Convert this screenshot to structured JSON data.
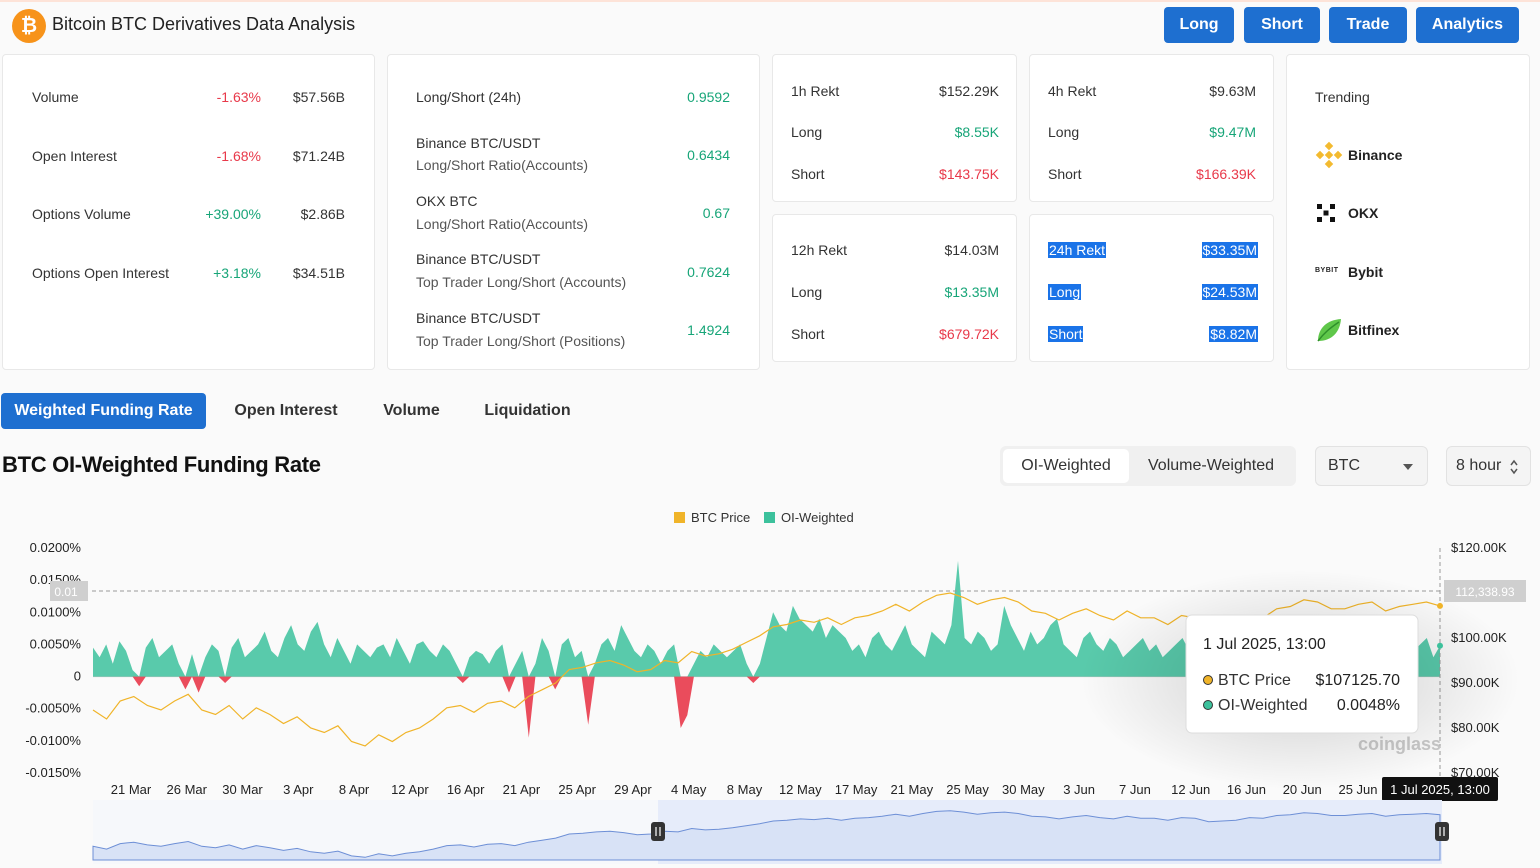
{
  "header": {
    "logo": "₿",
    "title": "Bitcoin BTC Derivatives Data Analysis",
    "nav": [
      "Long",
      "Short",
      "Trade",
      "Analytics"
    ]
  },
  "market": [
    {
      "label": "Volume",
      "change": "-1.63%",
      "value": "$57.56B"
    },
    {
      "label": "Open Interest",
      "change": "-1.68%",
      "value": "$71.24B"
    },
    {
      "label": "Options Volume",
      "change": "+39.00%",
      "value": "$2.86B"
    },
    {
      "label": "Options Open Interest",
      "change": "+3.18%",
      "value": "$34.51B"
    }
  ],
  "ratios": [
    {
      "line1": "Long/Short (24h)",
      "line2": "",
      "value": "0.9592"
    },
    {
      "line1": "Binance BTC/USDT",
      "line2": "Long/Short Ratio(Accounts)",
      "value": "0.6434"
    },
    {
      "line1": "OKX BTC",
      "line2": "Long/Short Ratio(Accounts)",
      "value": "0.67"
    },
    {
      "line1": "Binance BTC/USDT",
      "line2": "Top Trader Long/Short (Accounts)",
      "value": "0.7624"
    },
    {
      "line1": "Binance BTC/USDT",
      "line2": "Top Trader Long/Short (Positions)",
      "value": "1.4924"
    }
  ],
  "rekt": {
    "h1": {
      "title": "1h Rekt",
      "total": "$152.29K",
      "long_label": "Long",
      "long": "$8.55K",
      "short_label": "Short",
      "short": "$143.75K"
    },
    "h4": {
      "title": "4h Rekt",
      "total": "$9.63M",
      "long_label": "Long",
      "long": "$9.47M",
      "short_label": "Short",
      "short": "$166.39K"
    },
    "h12": {
      "title": "12h Rekt",
      "total": "$14.03M",
      "long_label": "Long",
      "long": "$13.35M",
      "short_label": "Short",
      "short": "$679.72K"
    },
    "h24": {
      "title": "24h Rekt",
      "total": "$33.35M",
      "long_label": "Long",
      "long": "$24.53M",
      "short_label": "Short",
      "short": "$8.82M"
    }
  },
  "trending": {
    "title": "Trending",
    "items": [
      "Binance",
      "OKX",
      "Bybit",
      "Bitfinex"
    ]
  },
  "tabs": [
    "Weighted Funding Rate",
    "Open Interest",
    "Volume",
    "Liquidation"
  ],
  "chart_header": {
    "title": "BTC OI-Weighted Funding Rate",
    "weight_options": [
      "OI-Weighted",
      "Volume-Weighted"
    ],
    "coin": "BTC",
    "interval": "8 hour"
  },
  "chart_data": {
    "type": "area",
    "legend": [
      "BTC Price",
      "OI-Weighted"
    ],
    "colors": {
      "price": "#f0b429",
      "positive": "#3cc19c",
      "negative": "#e8394a"
    },
    "y_left_ticks": [
      "0.0200%",
      "0.0150%",
      "0.0100%",
      "0.0050%",
      "0",
      "-0.0050%",
      "-0.0100%",
      "-0.0150%"
    ],
    "y_right_ticks": [
      "$120.00K",
      "$110.00K",
      "$100.00K",
      "$90.00K",
      "$80.00K",
      "$70.00K"
    ],
    "x_ticks": [
      "21 Mar",
      "26 Mar",
      "30 Mar",
      "3 Apr",
      "8 Apr",
      "12 Apr",
      "16 Apr",
      "21 Apr",
      "25 Apr",
      "29 Apr",
      "4 May",
      "8 May",
      "12 May",
      "17 May",
      "21 May",
      "25 May",
      "30 May",
      "3 Jun",
      "7 Jun",
      "12 Jun",
      "16 Jun",
      "20 Jun",
      "25 Jun"
    ],
    "ylim_left": [
      -0.015,
      0.02
    ],
    "ylim_right": [
      70000,
      120000
    ],
    "crosshair_left": "0.01",
    "crosshair_right": "112,338.93",
    "crosshair_x": "1 Jul 2025, 13:00",
    "watermark": "coinglass",
    "funding_rate": [
      0.0045,
      0.003,
      0.005,
      0.002,
      0.0055,
      0.004,
      0.001,
      -0.0015,
      0.0045,
      0.006,
      0.003,
      0.004,
      0.005,
      0.002,
      -0.002,
      0.0035,
      -0.0025,
      0.003,
      0.005,
      0.004,
      -0.001,
      0.0045,
      0.006,
      0.003,
      0.004,
      0.005,
      0.007,
      0.004,
      0.003,
      0.006,
      0.008,
      0.005,
      0.004,
      0.007,
      0.0085,
      0.005,
      0.003,
      0.006,
      0.004,
      0.002,
      0.005,
      0.004,
      0.003,
      0.0045,
      0.005,
      0.003,
      0.006,
      0.004,
      0.002,
      0.005,
      0.0055,
      0.004,
      0.003,
      0.005,
      0.004,
      0.002,
      -0.001,
      0.003,
      0.004,
      0.0035,
      0.002,
      0.004,
      0.005,
      -0.0025,
      0.002,
      0.004,
      -0.0095,
      0.002,
      0.006,
      0.004,
      -0.002,
      0.005,
      0.006,
      0.003,
      0.004,
      -0.0075,
      0.002,
      0.005,
      0.006,
      0.004,
      0.008,
      0.006,
      0.004,
      0.003,
      0.005,
      0.004,
      0.002,
      0.004,
      0.005,
      -0.008,
      -0.006,
      0.002,
      0.004,
      0.003,
      0.005,
      0.004,
      0.003,
      0.004,
      0.005,
      0.002,
      -0.001,
      0.002,
      0.006,
      0.01,
      0.008,
      0.007,
      0.011,
      0.009,
      0.008,
      0.007,
      0.009,
      0.006,
      0.008,
      0.007,
      0.006,
      0.004,
      0.005,
      0.003,
      0.006,
      0.007,
      0.005,
      0.004,
      0.006,
      0.008,
      0.005,
      0.004,
      0.003,
      0.007,
      0.006,
      0.005,
      0.008,
      0.018,
      0.006,
      0.005,
      0.007,
      0.006,
      0.004,
      0.005,
      0.011,
      0.008,
      0.006,
      0.004,
      0.007,
      0.005,
      0.006,
      0.008,
      0.009,
      0.005,
      0.004,
      0.003,
      0.006,
      0.007,
      0.005,
      0.004,
      0.006,
      0.005,
      0.003,
      0.004,
      0.005,
      0.006,
      0.004,
      0.005,
      0.003,
      0.004,
      0.005,
      0.006,
      0.004,
      0.003,
      0.005,
      0.004,
      0.002,
      0.005,
      0.003,
      -0.004,
      -0.002,
      0.003,
      0.004,
      -0.006,
      -0.003,
      0.006,
      0.007,
      0.005,
      0.008,
      0.005,
      0.004,
      0.006,
      0.005,
      0.003,
      0.004,
      0.005,
      0.003,
      0.004,
      0.002,
      0.005,
      0.004,
      0.003,
      0.006,
      0.004,
      0.003,
      0.005,
      0.004,
      0.005,
      0.006,
      0.003,
      0.0048
    ],
    "btc_price": [
      84000,
      82000,
      86000,
      87000,
      85000,
      84000,
      86000,
      87500,
      84000,
      83000,
      85000,
      82000,
      84500,
      83000,
      81000,
      82500,
      80000,
      79000,
      80500,
      77000,
      76000,
      78500,
      77000,
      79000,
      80000,
      82000,
      84500,
      85000,
      83500,
      85500,
      86000,
      84500,
      87000,
      88500,
      90000,
      93000,
      93500,
      94500,
      95000,
      94000,
      92500,
      93000,
      95000,
      94500,
      97000,
      96000,
      96500,
      97500,
      99000,
      100500,
      102500,
      103000,
      104000,
      103500,
      104500,
      103000,
      104500,
      105000,
      106000,
      107500,
      106000,
      108000,
      109500,
      110000,
      109000,
      107500,
      108500,
      109000,
      108000,
      106000,
      105500,
      104000,
      105500,
      106500,
      105000,
      104000,
      106000,
      104500,
      104500,
      103000,
      105000,
      104500,
      102000,
      102500,
      103000,
      105000,
      104500,
      106500,
      107000,
      108500,
      108000,
      106500,
      106500,
      107500,
      108000,
      106000,
      107000,
      107500,
      108000,
      107125.7
    ]
  },
  "tooltip": {
    "date": "1 Jul 2025, 13:00",
    "price_label": "BTC Price",
    "price_value": "$107125.70",
    "rate_label": "OI-Weighted",
    "rate_value": "0.0048%"
  }
}
